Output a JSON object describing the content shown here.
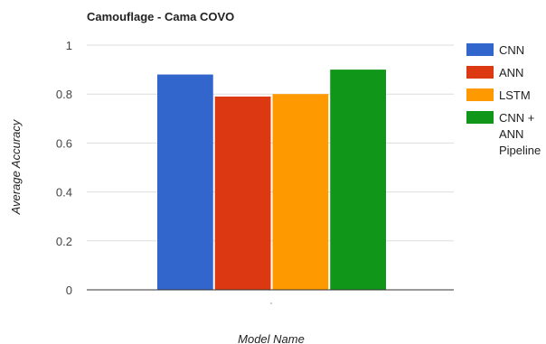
{
  "chart_data": {
    "type": "bar",
    "title": "Camouflage - Cama COVO",
    "xlabel": "Model Name",
    "ylabel": "Average Accuracy",
    "categories": [
      ""
    ],
    "series": [
      {
        "name": "CNN",
        "values": [
          0.88
        ],
        "color": "#3366cc"
      },
      {
        "name": "ANN",
        "values": [
          0.79
        ],
        "color": "#dc3912"
      },
      {
        "name": "LSTM",
        "values": [
          0.8
        ],
        "color": "#ff9900"
      },
      {
        "name": "CNN + ANN Pipeline",
        "values": [
          0.9
        ],
        "color": "#109618"
      }
    ],
    "ylim": [
      0,
      1
    ],
    "yticks": [
      "0",
      "0.2",
      "0.4",
      "0.6",
      "0.8",
      "1"
    ],
    "grid": true,
    "legend_position": "right"
  }
}
